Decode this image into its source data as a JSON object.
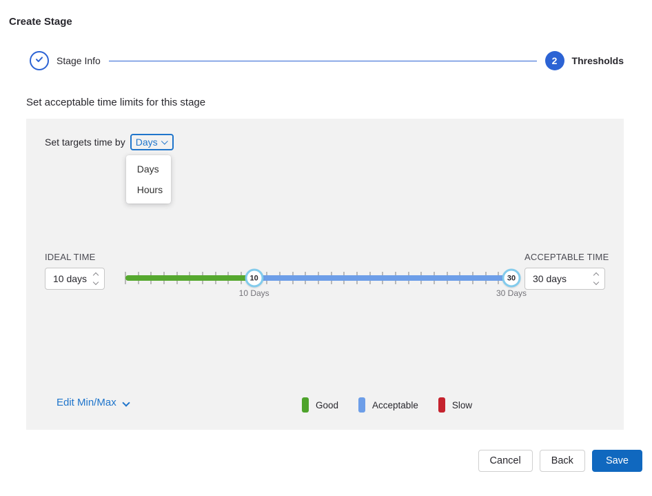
{
  "page": {
    "title": "Create Stage"
  },
  "stepper": {
    "steps": [
      {
        "label": "Stage Info",
        "state": "completed",
        "icon": "check-icon"
      },
      {
        "number": "2",
        "label": "Thresholds",
        "state": "active"
      }
    ]
  },
  "main": {
    "heading": "Set acceptable time limits for this stage"
  },
  "panel": {
    "targets_label": "Set targets time by",
    "unit_dropdown": {
      "value": "Days",
      "options": [
        "Days",
        "Hours"
      ]
    },
    "ideal": {
      "label": "IDEAL TIME",
      "value": "10 days"
    },
    "acceptable": {
      "label": "ACCEPTABLE TIME",
      "value": "30 days"
    },
    "slider": {
      "min": 0,
      "max": 30,
      "tick_interval": 1,
      "ideal_value": 10,
      "acceptable_value": 30,
      "ideal_handle_label": "10",
      "acceptable_handle_label": "30",
      "ideal_caption": "10 Days",
      "acceptable_caption": "30 Days",
      "colors": {
        "good": "#56a82f",
        "acceptable": "#6d9ee8"
      }
    },
    "edit_minmax": {
      "label": "Edit Min/Max"
    },
    "legend": [
      {
        "label": "Good",
        "color": "#4ea32b"
      },
      {
        "label": "Acceptable",
        "color": "#6d9ee8"
      },
      {
        "label": "Slow",
        "color": "#c5232e"
      }
    ]
  },
  "footer": {
    "cancel_label": "Cancel",
    "back_label": "Back",
    "save_label": "Save"
  },
  "colors": {
    "accent_blue": "#1f75cb",
    "step_blue": "#2c63d4",
    "save_blue": "#1068bf",
    "handle_ring": "#82cbec",
    "panel_bg": "#f2f2f2"
  }
}
